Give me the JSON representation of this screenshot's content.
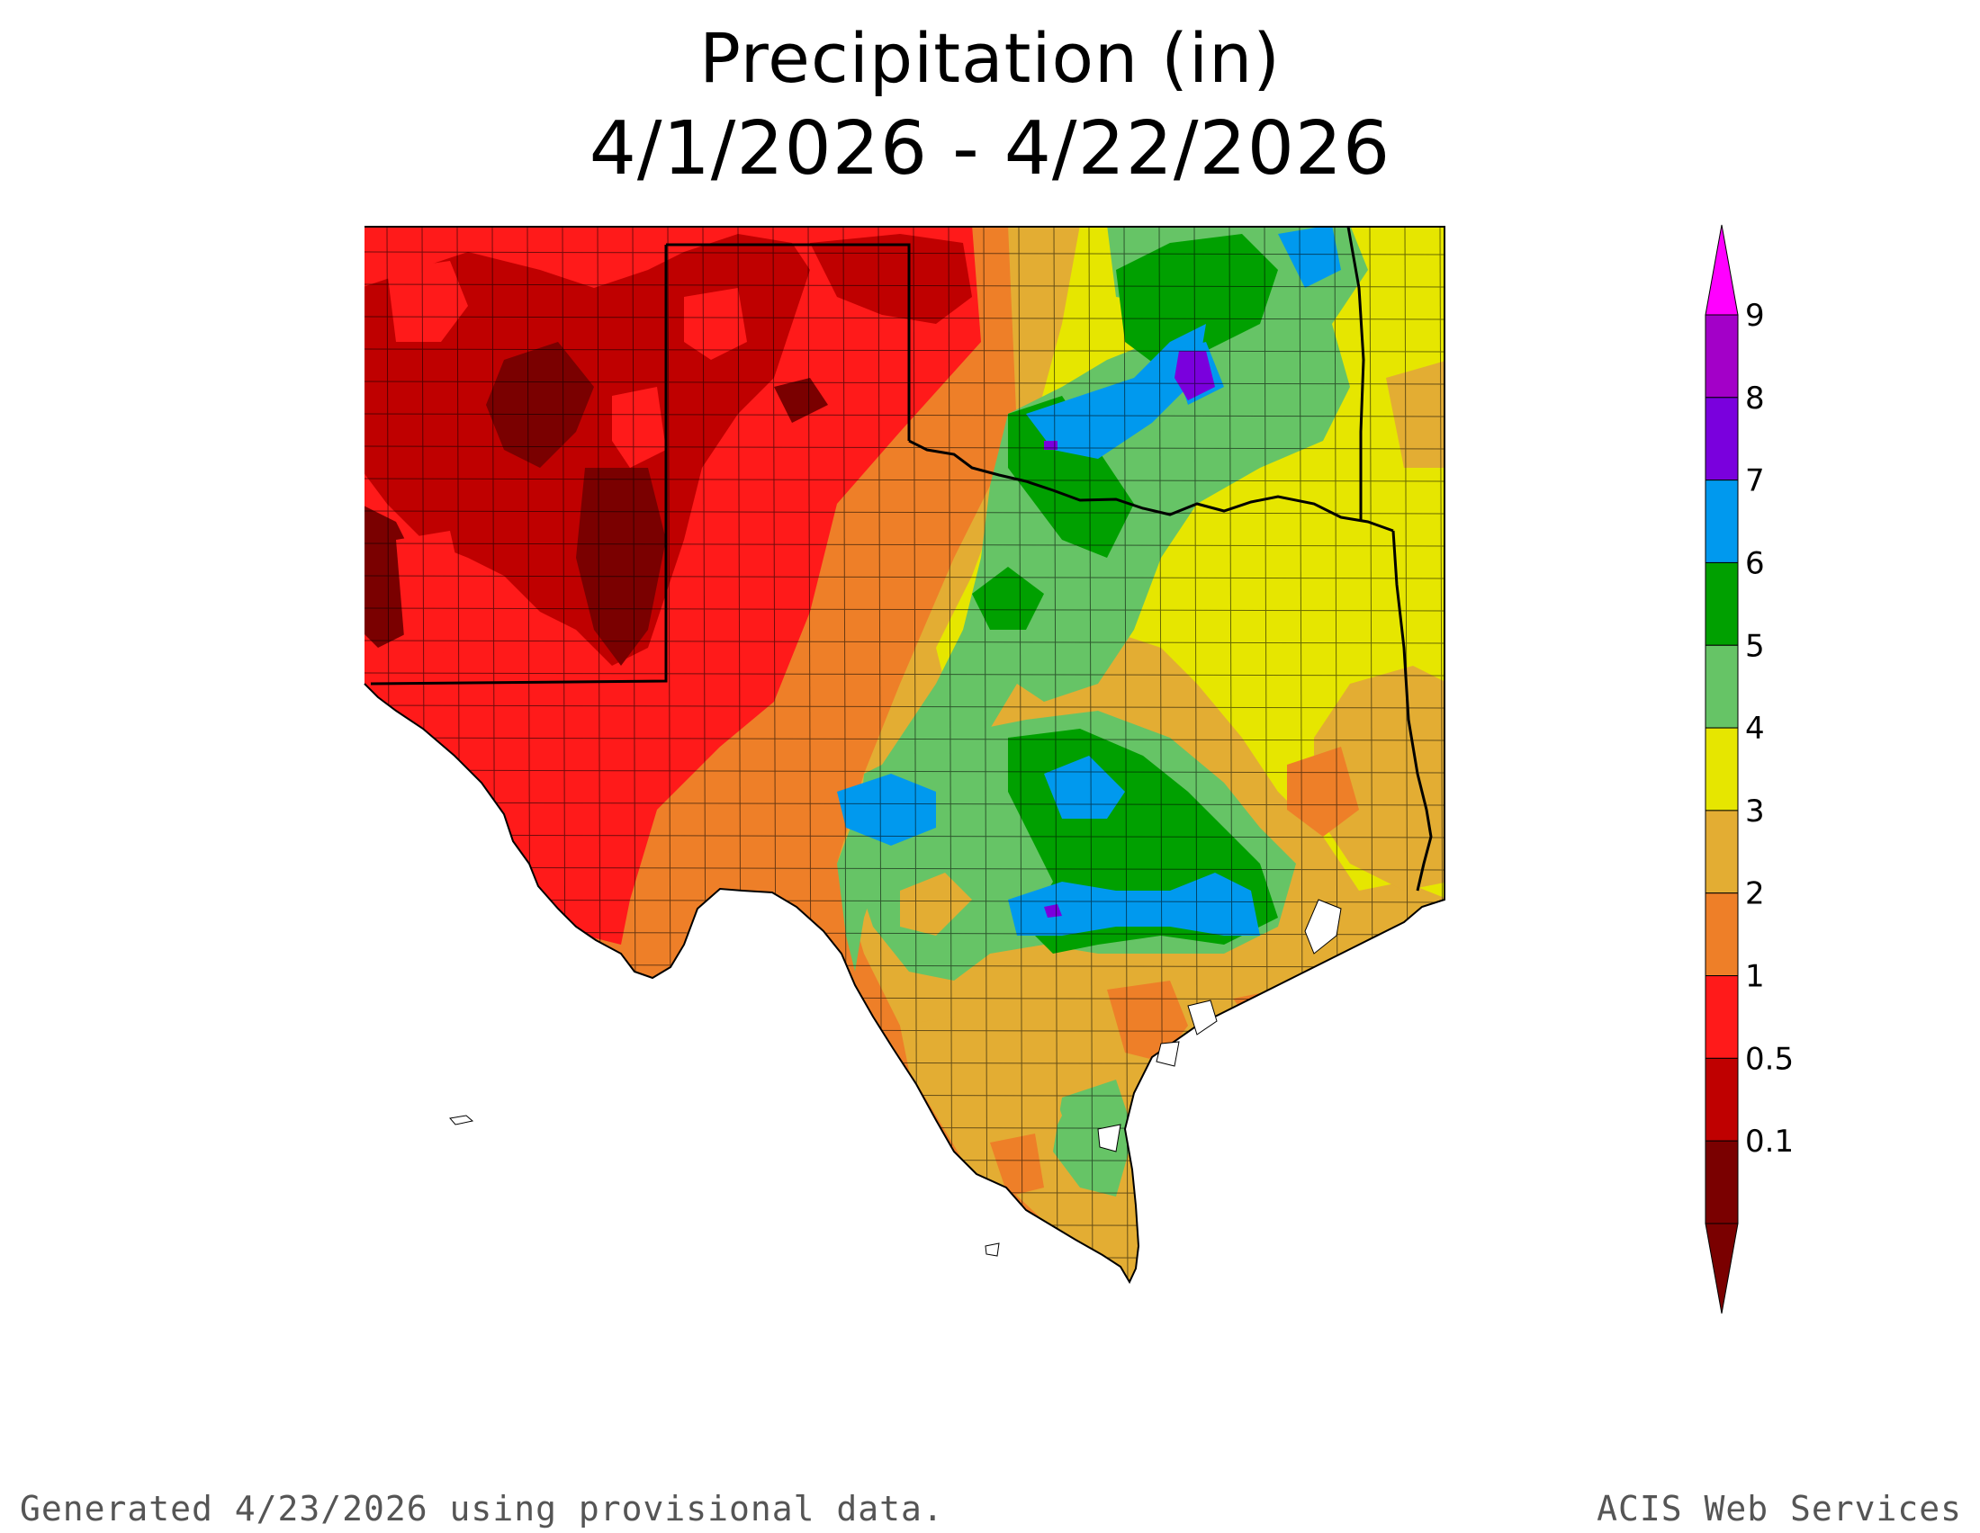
{
  "map": {
    "title": "Precipitation (in)",
    "date_range": "4/1/2026 - 4/22/2026",
    "region": "Texas, Oklahoma, New Mexico",
    "units": "in"
  },
  "legend": {
    "type": "color-scale",
    "bins": [
      {
        "label": "0.1",
        "color": "#7a0000"
      },
      {
        "label": "0.5",
        "color": "#bf0000"
      },
      {
        "label": "1",
        "color": "#ff1a1a"
      },
      {
        "label": "2",
        "color": "#ee7f28"
      },
      {
        "label": "3",
        "color": "#e3ad33"
      },
      {
        "label": "4",
        "color": "#e6e600"
      },
      {
        "label": "5",
        "color": "#66c466"
      },
      {
        "label": "6",
        "color": "#00a000"
      },
      {
        "label": "7",
        "color": "#0099ee"
      },
      {
        "label": "8",
        "color": "#7a00dd"
      },
      {
        "label": "9",
        "color": "#a300c8"
      }
    ],
    "top_arrow_color": "#ff00ff",
    "bottom_arrow_color": "#7a0000"
  },
  "footer": {
    "left": "Generated 4/23/2026  using provisional data.",
    "right": "ACIS Web Services"
  }
}
